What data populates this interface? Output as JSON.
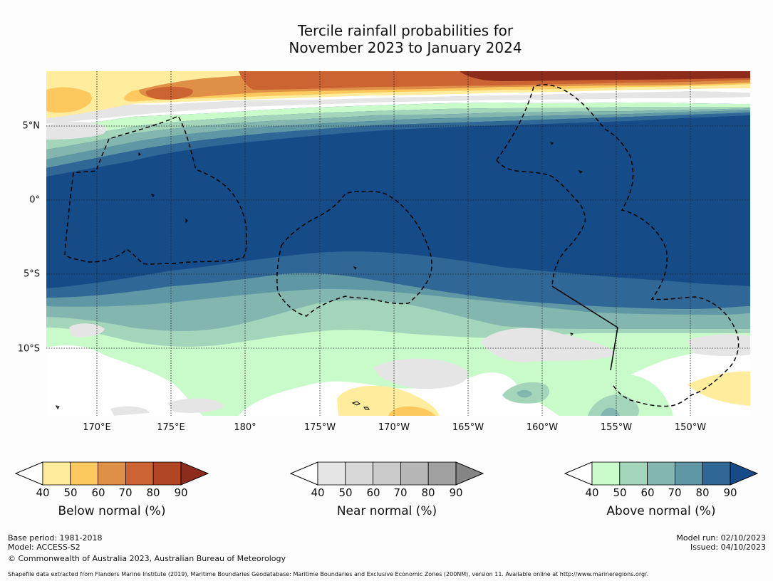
{
  "title": {
    "line1": "Tercile rainfall probabilities for",
    "line2": "November 2023 to January 2024"
  },
  "map": {
    "latitude_labels": [
      "5°N",
      "0°",
      "5°S",
      "10°S"
    ],
    "longitude_labels": [
      "170°E",
      "175°E",
      "180°",
      "175°W",
      "170°W",
      "165°W",
      "160°W",
      "155°W",
      "150°W"
    ]
  },
  "legends": [
    {
      "title": "Below normal (%)",
      "ticks": [
        "40",
        "50",
        "60",
        "70",
        "80",
        "90"
      ],
      "colors": [
        "#ffffff",
        "#ffec9c",
        "#fdc95e",
        "#e08f46",
        "#cb6332",
        "#b14624",
        "#8e2c1c"
      ]
    },
    {
      "title": "Near normal (%)",
      "ticks": [
        "40",
        "50",
        "60",
        "70",
        "80",
        "90"
      ],
      "colors": [
        "#ffffff",
        "#e5e5e5",
        "#d8d8d8",
        "#cbcbcb",
        "#b6b6b6",
        "#a0a0a0",
        "#858585"
      ]
    },
    {
      "title": "Above normal (%)",
      "ticks": [
        "40",
        "50",
        "60",
        "70",
        "80",
        "90"
      ],
      "colors": [
        "#ffffff",
        "#c8fbc9",
        "#a3d5bb",
        "#82b6ae",
        "#5f97a4",
        "#2f6797",
        "#154b87"
      ]
    }
  ],
  "footer": {
    "base_period": "Base period: 1981-2018",
    "model": "Model: ACCESS-S2",
    "copyright": "© Commonwealth of Australia 2023, Australian Bureau of Meteorology",
    "model_run": "Model run: 02/10/2023",
    "issued": "Issued: 04/10/2023",
    "shapefile_note": "Shapefile data extracted from Flanders Marine Institute (2019), Maritime Boundaries Geodatabase: Maritime Boundaries and Exclusive Economic Zones (200NM), version 11. Available online at http://www.marineregions.org/."
  }
}
